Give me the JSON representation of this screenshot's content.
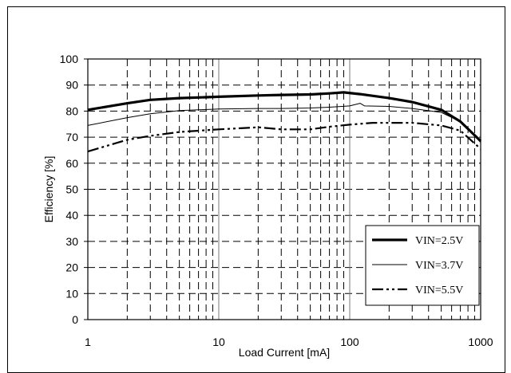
{
  "chart_data": {
    "type": "line",
    "title": "",
    "xlabel": "Load Current [mA]",
    "ylabel": "Efficiency [%]",
    "xscale": "log",
    "xlim": [
      1,
      1000
    ],
    "ylim": [
      0,
      100
    ],
    "xticks": [
      1,
      10,
      100,
      1000
    ],
    "xtick_labels": [
      "1",
      "10",
      "100",
      "1000"
    ],
    "yticks": [
      0,
      10,
      20,
      30,
      40,
      50,
      60,
      70,
      80,
      90,
      100
    ],
    "ytick_labels": [
      "0",
      "10",
      "20",
      "30",
      "40",
      "50",
      "60",
      "70",
      "80",
      "90",
      "100"
    ],
    "grid": "dashed major and minor",
    "legend_position": "bottom-right",
    "series": [
      {
        "name": "VIN=2.5V",
        "line_style": "thick-solid",
        "color": "#000000",
        "x": [
          1,
          2,
          3,
          5,
          10,
          20,
          30,
          50,
          70,
          90,
          120,
          200,
          300,
          500,
          700,
          1000
        ],
        "y": [
          80.5,
          83,
          84.3,
          85,
          85.5,
          86,
          86.2,
          86.4,
          86.8,
          87.2,
          86.5,
          85,
          83.5,
          80.5,
          76,
          68.5
        ]
      },
      {
        "name": "VIN=3.7V",
        "line_style": "thin-solid",
        "color": "#000000",
        "x": [
          1,
          2,
          3,
          5,
          10,
          20,
          30,
          50,
          70,
          100,
          120,
          130,
          200,
          300,
          500,
          700,
          1000
        ],
        "y": [
          74.5,
          77.5,
          79,
          80.2,
          80.8,
          81,
          81,
          81.2,
          81.5,
          82,
          83,
          82,
          81.8,
          81,
          79.5,
          76,
          68
        ]
      },
      {
        "name": "VIN=5.5V",
        "line_style": "dash-dot-dot",
        "color": "#000000",
        "x": [
          1,
          2,
          3,
          5,
          10,
          20,
          30,
          50,
          70,
          100,
          150,
          200,
          300,
          500,
          700,
          1000
        ],
        "y": [
          64.5,
          69,
          70.5,
          72,
          73,
          73.8,
          73,
          73,
          74,
          74.8,
          75.5,
          75.5,
          75.5,
          74.5,
          72.5,
          65.5
        ]
      }
    ]
  }
}
